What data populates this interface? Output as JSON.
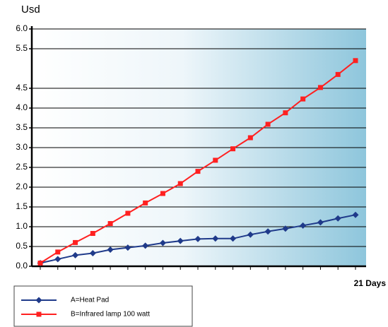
{
  "chart_data": {
    "type": "line",
    "y_label": "Usd",
    "x_label": "21 Days",
    "categories": [
      null,
      null,
      null,
      null,
      null,
      null,
      null,
      null,
      null,
      null,
      null,
      null,
      null,
      null,
      null,
      null,
      null,
      null,
      null
    ],
    "series": [
      {
        "name": "A=Heat Pad",
        "color": "#1f3a8a",
        "marker": "diamond",
        "values": [
          0.08,
          0.18,
          0.28,
          0.33,
          0.42,
          0.47,
          0.52,
          0.59,
          0.64,
          0.69,
          0.7,
          0.7,
          0.8,
          0.88,
          0.95,
          1.03,
          1.11,
          1.21,
          1.3
        ]
      },
      {
        "name": "B=Infrared lamp 100 watt",
        "color": "#ff2020",
        "marker": "square",
        "values": [
          0.08,
          0.36,
          0.6,
          0.83,
          1.08,
          1.34,
          1.6,
          1.84,
          2.09,
          2.4,
          2.68,
          2.97,
          3.25,
          3.59,
          3.88,
          4.23,
          4.52,
          4.85,
          5.2
        ]
      }
    ],
    "ylim": [
      0,
      6
    ],
    "yticks": [
      {
        "value": 0,
        "label": "0.0"
      },
      0.5,
      {
        "value": 1,
        "label": "1.0"
      },
      1.5,
      {
        "value": 2,
        "label": "2.0"
      },
      2.5,
      {
        "value": 3,
        "label": "3.0"
      },
      3.5,
      {
        "value": 4,
        "label": "4.0"
      },
      4.5,
      5.5,
      {
        "value": 6,
        "label": "6.0"
      }
    ],
    "grid": true,
    "legend": "bottom-left"
  }
}
